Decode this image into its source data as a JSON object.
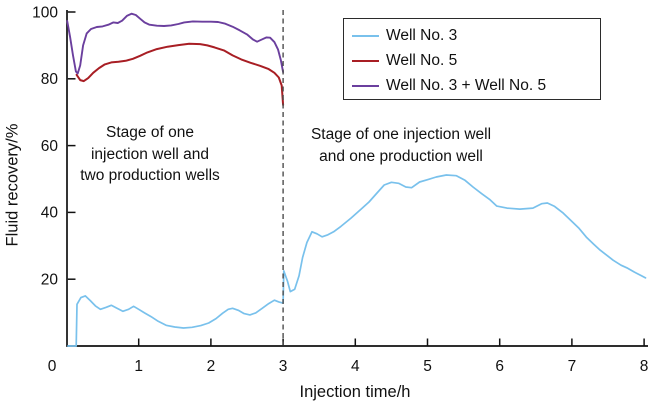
{
  "figure": {
    "background": "#ffffff"
  },
  "axes": {
    "y_label": "Fluid recovery/%",
    "x_label": "Injection time/h",
    "origin_label": "0",
    "x_ticks": [
      1,
      2,
      3,
      4,
      5,
      6,
      7,
      8
    ],
    "y_ticks": [
      20,
      40,
      60,
      80,
      100
    ],
    "x_range": [
      0,
      8
    ],
    "y_range": [
      0,
      100
    ],
    "axis_color": "#111111"
  },
  "legend": {
    "items": [
      {
        "label": "Well No. 3",
        "color": "#79c1ec"
      },
      {
        "label": "Well No. 5",
        "color": "#a81e24"
      },
      {
        "label": "Well No. 3 + Well No. 5",
        "color": "#6b3f9e"
      }
    ]
  },
  "annotations": {
    "stage1": {
      "lines": [
        "Stage of one",
        "injection well and",
        "two production wells"
      ]
    },
    "stage2": {
      "lines": [
        "Stage of one injection well",
        "and one production well"
      ]
    }
  },
  "divider": {
    "x": 3,
    "color": "#4d4d4d",
    "style": "dashed"
  },
  "chart_data": {
    "type": "line",
    "title": "",
    "xlabel": "Injection time/h",
    "ylabel": "Fluid recovery/%",
    "xlim": [
      0,
      8
    ],
    "ylim": [
      0,
      100
    ],
    "grid": false,
    "legend_position": "top-right",
    "vline_x": 3,
    "series": [
      {
        "name": "Well No. 3",
        "color": "#79c1ec",
        "points": [
          [
            0.02,
            0
          ],
          [
            0.135,
            0
          ],
          [
            0.145,
            12.5
          ],
          [
            0.2,
            14.5
          ],
          [
            0.26,
            15.0
          ],
          [
            0.33,
            13.6
          ],
          [
            0.4,
            12.0
          ],
          [
            0.47,
            11.0
          ],
          [
            0.55,
            11.6
          ],
          [
            0.62,
            12.2
          ],
          [
            0.7,
            11.3
          ],
          [
            0.78,
            10.4
          ],
          [
            0.86,
            11.0
          ],
          [
            0.93,
            11.9
          ],
          [
            1.0,
            11.0
          ],
          [
            1.08,
            9.9
          ],
          [
            1.17,
            8.8
          ],
          [
            1.27,
            7.4
          ],
          [
            1.38,
            6.2
          ],
          [
            1.5,
            5.7
          ],
          [
            1.62,
            5.4
          ],
          [
            1.74,
            5.6
          ],
          [
            1.86,
            6.1
          ],
          [
            1.97,
            6.9
          ],
          [
            2.07,
            8.2
          ],
          [
            2.16,
            9.8
          ],
          [
            2.24,
            11.0
          ],
          [
            2.3,
            11.3
          ],
          [
            2.38,
            10.7
          ],
          [
            2.46,
            9.7
          ],
          [
            2.54,
            9.3
          ],
          [
            2.62,
            9.9
          ],
          [
            2.71,
            11.3
          ],
          [
            2.8,
            12.7
          ],
          [
            2.88,
            13.7
          ],
          [
            2.94,
            13.2
          ],
          [
            2.99,
            12.9
          ],
          [
            3.0,
            13.0
          ],
          [
            3.01,
            22.5
          ],
          [
            3.06,
            19.5
          ],
          [
            3.1,
            16.3
          ],
          [
            3.16,
            17.0
          ],
          [
            3.22,
            21.0
          ],
          [
            3.27,
            26.5
          ],
          [
            3.33,
            31.0
          ],
          [
            3.4,
            34.2
          ],
          [
            3.47,
            33.6
          ],
          [
            3.54,
            32.7
          ],
          [
            3.62,
            33.3
          ],
          [
            3.7,
            34.2
          ],
          [
            3.8,
            35.8
          ],
          [
            3.94,
            38.3
          ],
          [
            4.08,
            41.0
          ],
          [
            4.19,
            43.1
          ],
          [
            4.3,
            45.8
          ],
          [
            4.4,
            48.2
          ],
          [
            4.5,
            49.0
          ],
          [
            4.6,
            48.7
          ],
          [
            4.7,
            47.6
          ],
          [
            4.78,
            47.4
          ],
          [
            4.89,
            49.1
          ],
          [
            5.0,
            49.8
          ],
          [
            5.12,
            50.6
          ],
          [
            5.26,
            51.2
          ],
          [
            5.4,
            51.0
          ],
          [
            5.52,
            49.6
          ],
          [
            5.63,
            47.6
          ],
          [
            5.75,
            45.6
          ],
          [
            5.86,
            43.9
          ],
          [
            5.96,
            41.9
          ],
          [
            6.1,
            41.3
          ],
          [
            6.28,
            41.0
          ],
          [
            6.46,
            41.3
          ],
          [
            6.58,
            42.6
          ],
          [
            6.66,
            42.8
          ],
          [
            6.76,
            41.8
          ],
          [
            6.88,
            39.8
          ],
          [
            7.01,
            37.1
          ],
          [
            7.1,
            35.2
          ],
          [
            7.2,
            32.6
          ],
          [
            7.3,
            30.5
          ],
          [
            7.39,
            28.7
          ],
          [
            7.5,
            26.9
          ],
          [
            7.57,
            25.7
          ],
          [
            7.68,
            24.2
          ],
          [
            7.76,
            23.4
          ],
          [
            7.86,
            22.2
          ],
          [
            7.95,
            21.2
          ],
          [
            8.02,
            20.4
          ]
        ]
      },
      {
        "name": "Well No. 5",
        "color": "#a81e24",
        "points": [
          [
            0.14,
            81.2
          ],
          [
            0.19,
            79.6
          ],
          [
            0.24,
            79.3
          ],
          [
            0.3,
            80.2
          ],
          [
            0.37,
            81.8
          ],
          [
            0.45,
            83.2
          ],
          [
            0.53,
            84.3
          ],
          [
            0.62,
            84.9
          ],
          [
            0.72,
            85.1
          ],
          [
            0.82,
            85.4
          ],
          [
            0.92,
            86.0
          ],
          [
            1.02,
            86.9
          ],
          [
            1.12,
            87.9
          ],
          [
            1.25,
            88.9
          ],
          [
            1.4,
            89.6
          ],
          [
            1.55,
            90.1
          ],
          [
            1.7,
            90.5
          ],
          [
            1.85,
            90.4
          ],
          [
            1.95,
            90.0
          ],
          [
            2.05,
            89.4
          ],
          [
            2.18,
            88.5
          ],
          [
            2.3,
            87.0
          ],
          [
            2.42,
            85.8
          ],
          [
            2.55,
            84.8
          ],
          [
            2.68,
            83.9
          ],
          [
            2.8,
            82.9
          ],
          [
            2.88,
            81.8
          ],
          [
            2.94,
            80.4
          ],
          [
            2.98,
            78.0
          ],
          [
            3.0,
            72.2
          ]
        ]
      },
      {
        "name": "Well No. 3 + Well No. 5",
        "color": "#6b3f9e",
        "points": [
          [
            0.01,
            97.3
          ],
          [
            0.05,
            92.5
          ],
          [
            0.09,
            87.0
          ],
          [
            0.13,
            82.2
          ],
          [
            0.155,
            81.6
          ],
          [
            0.19,
            84.0
          ],
          [
            0.23,
            90.0
          ],
          [
            0.28,
            93.6
          ],
          [
            0.34,
            94.9
          ],
          [
            0.42,
            95.5
          ],
          [
            0.5,
            95.7
          ],
          [
            0.58,
            96.2
          ],
          [
            0.65,
            96.9
          ],
          [
            0.71,
            96.7
          ],
          [
            0.77,
            97.4
          ],
          [
            0.84,
            98.9
          ],
          [
            0.9,
            99.5
          ],
          [
            0.96,
            99.1
          ],
          [
            1.02,
            98.0
          ],
          [
            1.08,
            96.9
          ],
          [
            1.15,
            96.2
          ],
          [
            1.25,
            95.9
          ],
          [
            1.35,
            95.8
          ],
          [
            1.45,
            96.0
          ],
          [
            1.55,
            96.4
          ],
          [
            1.63,
            96.9
          ],
          [
            1.75,
            97.2
          ],
          [
            1.88,
            97.1
          ],
          [
            2.0,
            97.1
          ],
          [
            2.1,
            97.0
          ],
          [
            2.2,
            96.5
          ],
          [
            2.3,
            95.6
          ],
          [
            2.4,
            94.5
          ],
          [
            2.5,
            93.3
          ],
          [
            2.58,
            91.8
          ],
          [
            2.64,
            91.1
          ],
          [
            2.7,
            91.7
          ],
          [
            2.77,
            92.4
          ],
          [
            2.82,
            92.3
          ],
          [
            2.88,
            91.0
          ],
          [
            2.93,
            88.8
          ],
          [
            2.97,
            85.5
          ],
          [
            3.0,
            82.0
          ]
        ]
      }
    ]
  }
}
